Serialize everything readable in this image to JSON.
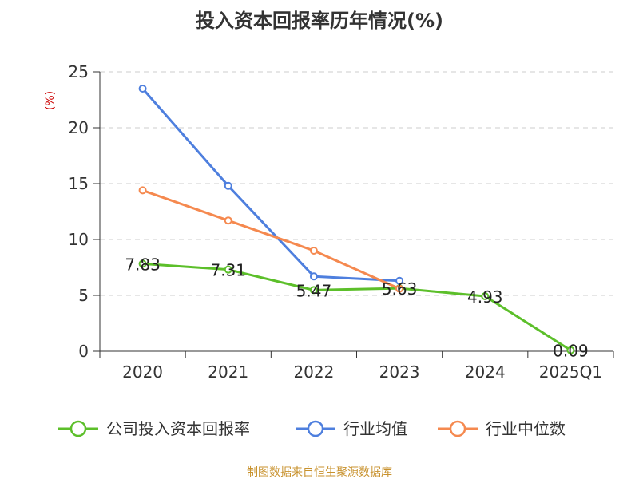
{
  "chart_data": {
    "type": "line",
    "title": "投入资本回报率历年情况(%)",
    "ylabel": "(%)",
    "xlabel": "",
    "ylim": [
      0,
      25
    ],
    "yticks": [
      0,
      5,
      10,
      15,
      20,
      25
    ],
    "categories": [
      "2020",
      "2021",
      "2022",
      "2023",
      "2024",
      "2025Q1"
    ],
    "grid": true,
    "legend_position": "bottom",
    "series": [
      {
        "name": "公司投入资本回报率",
        "color": "#5cbf2a",
        "values": [
          7.83,
          7.31,
          5.47,
          5.63,
          4.93,
          0.09
        ],
        "labels": [
          "7.83",
          "7.31",
          "5.47",
          "5.63",
          "4.93",
          "0.09"
        ]
      },
      {
        "name": "行业均值",
        "color": "#4e7fde",
        "values": [
          23.5,
          14.8,
          6.7,
          6.3,
          null,
          null
        ]
      },
      {
        "name": "行业中位数",
        "color": "#f5894f",
        "values": [
          14.4,
          11.7,
          9.0,
          5.6,
          null,
          null
        ]
      }
    ],
    "source": "制图数据来自恒生聚源数据库"
  }
}
